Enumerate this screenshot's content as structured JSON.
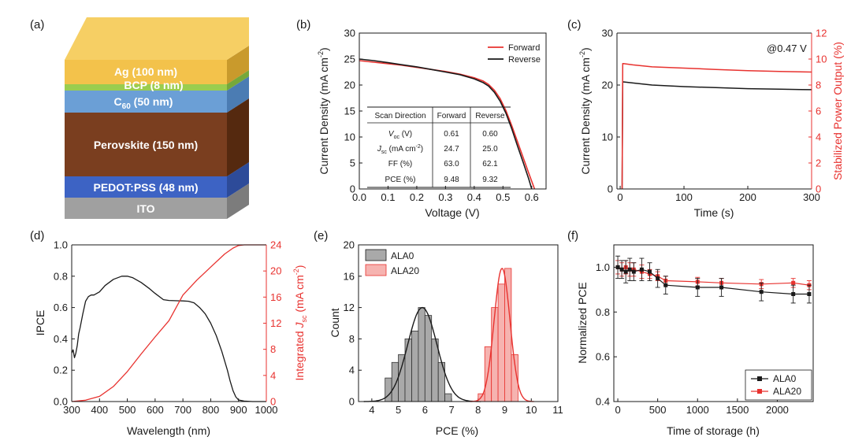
{
  "colors": {
    "black": "#1a1a1a",
    "red": "#e8322f",
    "gray_fill": "#a9a9a9",
    "pink_fill": "#f6b3b0",
    "ag": "#f3c24b",
    "bcp": "#9acd4f",
    "c60": "#6b9fd6",
    "perov": "#7a3e1f",
    "pedot": "#3d63c4",
    "ito": "#a0a0a0"
  },
  "panel_labels": [
    "(a)",
    "(b)",
    "(c)",
    "(d)",
    "(e)",
    "(f)"
  ],
  "device_stack": {
    "layers": [
      {
        "name": "ITO",
        "label_main": "ITO",
        "label_sub": "",
        "label_rest": ""
      },
      {
        "name": "PEDOT:PSS",
        "label_main": "PEDOT:PSS (48 nm)",
        "label_sub": "",
        "label_rest": ""
      },
      {
        "name": "Perovskite",
        "label_main": "Perovskite (150 nm)",
        "label_sub": "",
        "label_rest": ""
      },
      {
        "name": "C60",
        "label_main": "C",
        "label_sub": "60",
        "label_rest": " (50 nm)"
      },
      {
        "name": "BCP",
        "label_main": "BCP (8 nm)",
        "label_sub": "",
        "label_rest": ""
      },
      {
        "name": "Ag",
        "label_main": "Ag (100 nm)",
        "label_sub": "",
        "label_rest": ""
      }
    ]
  },
  "chart_data": [
    {
      "id": "b",
      "type": "line",
      "xlabel": "Voltage (V)",
      "ylabel_main": "Current Density (mA cm",
      "ylabel_sup": "-2",
      "ylabel_end": ")",
      "xlim": [
        0.0,
        0.65
      ],
      "ylim": [
        0,
        30
      ],
      "xticks": [
        0.0,
        0.1,
        0.2,
        0.3,
        0.4,
        0.5,
        0.6
      ],
      "xtick_labels": [
        "0.0",
        "0.1",
        "0.2",
        "0.3",
        "0.4",
        "0.5",
        "0.6"
      ],
      "yticks": [
        0,
        5,
        10,
        15,
        20,
        25,
        30
      ],
      "ytick_labels": [
        "0",
        "5",
        "10",
        "15",
        "20",
        "25",
        "30"
      ],
      "legend": [
        "Forward",
        "Reverse"
      ],
      "series": [
        {
          "name": "Forward",
          "color": "red",
          "x": [
            0,
            0.05,
            0.1,
            0.15,
            0.2,
            0.25,
            0.3,
            0.35,
            0.4,
            0.43,
            0.45,
            0.47,
            0.49,
            0.51,
            0.53,
            0.55,
            0.57,
            0.59,
            0.61
          ],
          "y": [
            24.7,
            24.4,
            24.1,
            23.8,
            23.4,
            23.0,
            22.6,
            22.1,
            21.4,
            20.8,
            20.1,
            19.0,
            17.4,
            15.1,
            12.3,
            9.2,
            6.1,
            3.0,
            0
          ]
        },
        {
          "name": "Reverse",
          "color": "black",
          "x": [
            0,
            0.05,
            0.1,
            0.15,
            0.2,
            0.25,
            0.3,
            0.35,
            0.4,
            0.43,
            0.45,
            0.47,
            0.49,
            0.51,
            0.53,
            0.55,
            0.57,
            0.59,
            0.6
          ],
          "y": [
            25.0,
            24.7,
            24.3,
            23.9,
            23.5,
            23.0,
            22.5,
            22.0,
            21.2,
            20.5,
            19.8,
            18.6,
            16.9,
            14.6,
            11.7,
            8.4,
            5.2,
            1.9,
            0
          ]
        }
      ],
      "table": {
        "header": [
          "Scan Direction",
          "Forward",
          "Reverse"
        ],
        "rows": [
          {
            "m1": "V",
            "s": "oc",
            "m2": " (V)",
            "sup": "",
            "m3": "",
            "f": "0.61",
            "r": "0.60"
          },
          {
            "m1": "J",
            "s": "sc",
            "m2": " (mA cm",
            "sup": "-2",
            "m3": ")",
            "f": "24.7",
            "r": "25.0"
          },
          {
            "m1": "FF (%)",
            "s": "",
            "m2": "",
            "sup": "",
            "m3": "",
            "f": "63.0",
            "r": "62.1"
          },
          {
            "m1": "PCE (%)",
            "s": "",
            "m2": "",
            "sup": "",
            "m3": "",
            "f": "9.48",
            "r": "9.32"
          }
        ]
      }
    },
    {
      "id": "c",
      "type": "line",
      "xlabel": "Time (s)",
      "ylabel_main": "Current Density (mA cm",
      "ylabel_sup": "-2",
      "ylabel_end": ")",
      "y2label": "Stabilized Power Output (%)",
      "annotation": "@0.47 V",
      "xlim": [
        -5,
        300
      ],
      "ylim": [
        0,
        30
      ],
      "y2lim": [
        0,
        12
      ],
      "xticks": [
        0,
        100,
        200,
        300
      ],
      "xtick_labels": [
        "0",
        "100",
        "200",
        "300"
      ],
      "yticks": [
        0,
        10,
        20,
        30
      ],
      "ytick_labels": [
        "0",
        "10",
        "20",
        "30"
      ],
      "y2ticks": [
        0,
        2,
        4,
        6,
        8,
        10,
        12
      ],
      "y2tick_labels": [
        "0",
        "2",
        "4",
        "6",
        "8",
        "10",
        "12"
      ],
      "series": [
        {
          "name": "Current Density",
          "color": "black",
          "axis": "y",
          "x": [
            3,
            4,
            5,
            20,
            50,
            100,
            150,
            200,
            250,
            300
          ],
          "y": [
            0,
            20.6,
            20.6,
            20.4,
            20.0,
            19.7,
            19.5,
            19.3,
            19.2,
            19.1
          ]
        },
        {
          "name": "Stabilized Power Output",
          "color": "red",
          "axis": "y2",
          "x": [
            3,
            4,
            5,
            20,
            50,
            100,
            150,
            200,
            250,
            300
          ],
          "y": [
            0,
            9.65,
            9.65,
            9.55,
            9.4,
            9.3,
            9.2,
            9.1,
            9.05,
            9.0
          ]
        }
      ]
    },
    {
      "id": "d",
      "type": "line",
      "xlabel": "Wavelength (nm)",
      "ylabel": "IPCE",
      "y2label_main": "Integrated ",
      "y2label_j": "J",
      "y2label_sub": "sc",
      "y2label_mid": " (mA cm",
      "y2label_sup": "-2",
      "y2label_end": ")",
      "xlim": [
        300,
        1000
      ],
      "ylim": [
        0,
        1.0
      ],
      "y2lim": [
        0,
        24
      ],
      "xticks": [
        300,
        400,
        500,
        600,
        700,
        800,
        900,
        1000
      ],
      "xtick_labels": [
        "300",
        "400",
        "500",
        "600",
        "700",
        "800",
        "900",
        "1000"
      ],
      "yticks": [
        0,
        0.2,
        0.4,
        0.6,
        0.8,
        1.0
      ],
      "ytick_labels": [
        "0.0",
        "0.2",
        "0.4",
        "0.6",
        "0.8",
        "1.0"
      ],
      "y2ticks": [
        0,
        4,
        8,
        12,
        16,
        20,
        24
      ],
      "y2tick_labels": [
        "0",
        "4",
        "8",
        "12",
        "16",
        "20",
        "24"
      ],
      "series": [
        {
          "name": "IPCE",
          "color": "black",
          "axis": "y",
          "x": [
            300,
            305,
            310,
            315,
            320,
            325,
            330,
            340,
            350,
            360,
            370,
            380,
            400,
            420,
            450,
            480,
            500,
            520,
            550,
            580,
            600,
            630,
            650,
            680,
            700,
            720,
            740,
            760,
            780,
            800,
            820,
            840,
            860,
            870,
            880,
            890,
            900,
            920,
            950,
            1000
          ],
          "y": [
            0.31,
            0.33,
            0.28,
            0.31,
            0.36,
            0.43,
            0.47,
            0.56,
            0.64,
            0.67,
            0.68,
            0.68,
            0.7,
            0.74,
            0.78,
            0.8,
            0.8,
            0.79,
            0.76,
            0.72,
            0.69,
            0.65,
            0.645,
            0.643,
            0.642,
            0.64,
            0.63,
            0.6,
            0.56,
            0.5,
            0.42,
            0.32,
            0.2,
            0.13,
            0.07,
            0.03,
            0.01,
            0.003,
            0.0,
            0.0
          ]
        },
        {
          "name": "Integrated Jsc",
          "color": "red",
          "axis": "y2",
          "x": [
            300,
            350,
            400,
            450,
            500,
            550,
            600,
            650,
            700,
            750,
            800,
            850,
            880,
            900,
            920,
            950,
            1000
          ],
          "y": [
            0,
            0.2,
            0.8,
            2.3,
            4.6,
            7.3,
            9.9,
            12.4,
            16.3,
            18.6,
            20.6,
            22.6,
            23.5,
            23.9,
            24.0,
            24.0,
            24.0
          ]
        }
      ]
    },
    {
      "id": "e",
      "type": "bar",
      "xlabel": "PCE (%)",
      "ylabel": "Count",
      "xlim": [
        3.5,
        11
      ],
      "ylim": [
        0,
        20
      ],
      "xticks": [
        4,
        5,
        6,
        7,
        8,
        9,
        10,
        11
      ],
      "xtick_labels": [
        "4",
        "5",
        "6",
        "7",
        "8",
        "9",
        "10",
        "11"
      ],
      "yticks": [
        0,
        4,
        8,
        12,
        16,
        20
      ],
      "ytick_labels": [
        "0",
        "4",
        "8",
        "12",
        "16",
        "20"
      ],
      "legend": [
        "ALA0",
        "ALA20"
      ],
      "bin_width": 0.25,
      "series": [
        {
          "name": "ALA0",
          "color": "gray_fill",
          "bin_starts": [
            4.5,
            4.75,
            5.0,
            5.25,
            5.5,
            5.75,
            6.0,
            6.25,
            6.5,
            6.75
          ],
          "counts": [
            3,
            5,
            6,
            8,
            9,
            12,
            11,
            8,
            5,
            1
          ],
          "fit_mu": 5.9,
          "fit_sigma": 0.55,
          "fit_amp": 12
        },
        {
          "name": "ALA20",
          "color": "pink_fill",
          "bin_starts": [
            8.0,
            8.25,
            8.5,
            8.75,
            9.0,
            9.25
          ],
          "counts": [
            1,
            7,
            12,
            15,
            17,
            6
          ],
          "fit_mu": 8.9,
          "fit_sigma": 0.3,
          "fit_amp": 17
        }
      ]
    },
    {
      "id": "f",
      "type": "line",
      "xlabel": "Time of storage (h)",
      "ylabel": "Normalized PCE",
      "xlim": [
        -50,
        2450
      ],
      "ylim": [
        0.4,
        1.1
      ],
      "xticks": [
        0,
        500,
        1000,
        1500,
        2000
      ],
      "xtick_labels": [
        "0",
        "500",
        "1000",
        "1500",
        "2000"
      ],
      "yticks": [
        0.4,
        0.6,
        0.8,
        1.0
      ],
      "ytick_labels": [
        "0.4",
        "0.6",
        "0.8",
        "1.0"
      ],
      "legend": [
        "ALA0",
        "ALA20"
      ],
      "series": [
        {
          "name": "ALA0",
          "color": "black",
          "x": [
            0,
            50,
            100,
            150,
            200,
            300,
            400,
            500,
            600,
            1000,
            1300,
            1800,
            2200,
            2400
          ],
          "y": [
            1.0,
            0.99,
            0.98,
            0.99,
            0.98,
            0.99,
            0.98,
            0.95,
            0.92,
            0.91,
            0.91,
            0.89,
            0.88,
            0.88
          ],
          "err": [
            0.05,
            0.04,
            0.05,
            0.05,
            0.04,
            0.05,
            0.04,
            0.04,
            0.04,
            0.04,
            0.04,
            0.04,
            0.04,
            0.04
          ]
        },
        {
          "name": "ALA20",
          "color": "red",
          "x": [
            0,
            50,
            100,
            150,
            200,
            300,
            400,
            500,
            600,
            1000,
            1300,
            1800,
            2200,
            2400
          ],
          "y": [
            1.0,
            0.99,
            1.0,
            0.99,
            0.99,
            0.98,
            0.97,
            0.96,
            0.94,
            0.935,
            0.93,
            0.925,
            0.93,
            0.92
          ],
          "err": [
            0.03,
            0.03,
            0.03,
            0.03,
            0.03,
            0.03,
            0.02,
            0.02,
            0.02,
            0.02,
            0.02,
            0.02,
            0.02,
            0.02
          ]
        }
      ]
    }
  ]
}
